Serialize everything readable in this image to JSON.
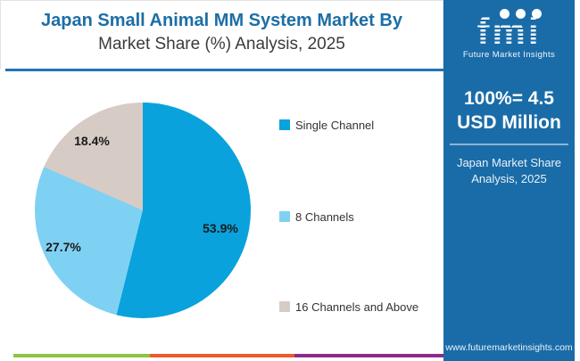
{
  "header": {
    "title_line1": "Japan Small Animal MM System Market By",
    "title_line2": "Market Share (%) Analysis, 2025"
  },
  "chart_data": {
    "type": "pie",
    "title": "Japan Small Animal MM System Market By Market Share (%) Analysis, 2025",
    "categories": [
      "Single Channel",
      "8 Channels",
      "16 Channels and Above"
    ],
    "values": [
      53.9,
      27.7,
      18.4
    ],
    "value_labels": [
      "53.9%",
      "27.7%",
      "18.4%"
    ],
    "colors": [
      "#09a2dc",
      "#7fd1f3",
      "#d7cbc5"
    ],
    "start_angle_deg": 0,
    "direction": "clockwise",
    "legend_position": "right",
    "total_annotation": "100%= 4.5 USD Million"
  },
  "side_panel": {
    "logo_text": "fmi",
    "logo_caption": "Future Market Insights",
    "stat_line1": "100%= 4.5",
    "stat_line2": "USD Million",
    "subtitle_line1": "Japan Market Share",
    "subtitle_line2": "Analysis, 2025",
    "website": "www.futuremarketinsights.com",
    "background_color": "#1a6ca8"
  },
  "accents": {
    "title_color": "#1c6ea6",
    "underline_color": "#2373b4"
  },
  "footer": {
    "stripe_colors": [
      "#8cc540",
      "#ee5b28",
      "#8e2a8b"
    ]
  }
}
